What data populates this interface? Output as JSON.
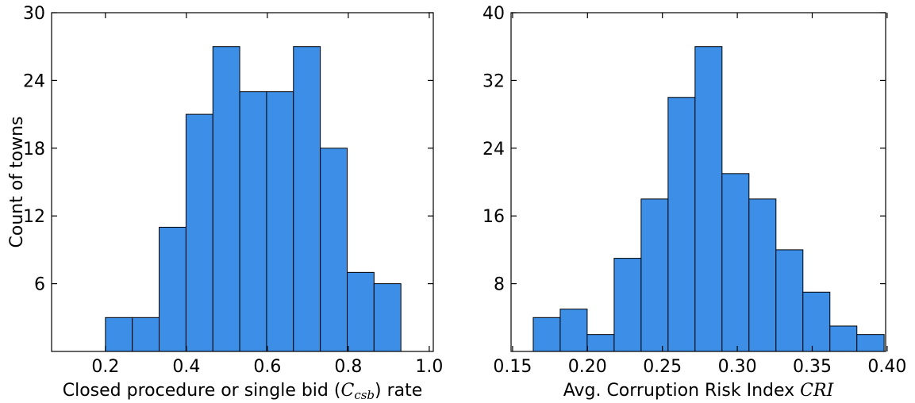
{
  "chart_data": [
    {
      "type": "histogram",
      "ylabel": "Count of towns",
      "xlabel": [
        "Closed procedure or single bid (",
        "C",
        "csb",
        ") rate"
      ],
      "bins": [
        0.2,
        0.2664,
        0.3327,
        0.3991,
        0.4655,
        0.5318,
        0.5982,
        0.6645,
        0.7309,
        0.7973,
        0.8636,
        0.93
      ],
      "values": [
        3,
        3,
        11,
        21,
        27,
        23,
        23,
        27,
        18,
        7,
        6
      ],
      "color": "#3d8ee6",
      "xlim": [
        0.067,
        1.01
      ],
      "xticks": [
        0.2,
        0.4,
        0.6,
        0.8,
        {
          "value": 1.0,
          "label": "1.0"
        }
      ],
      "ylim": [
        0,
        30
      ],
      "yticks": [
        6,
        12,
        18,
        24,
        30
      ]
    },
    {
      "type": "histogram",
      "xlabel": [
        "Avg. Corruption Risk Index ",
        "CRI"
      ],
      "bins": [
        0.1638,
        0.1818,
        0.1998,
        0.2178,
        0.2358,
        0.2538,
        0.2718,
        0.2898,
        0.3078,
        0.3258,
        0.3438,
        0.3618,
        0.3798,
        0.398
      ],
      "values": [
        4,
        5,
        2,
        11,
        18,
        30,
        36,
        21,
        18,
        12,
        7,
        3,
        2
      ],
      "color": "#3d8ee6",
      "xlim": [
        0.149,
        0.399
      ],
      "xticks": [
        0.15,
        {
          "value": 0.2,
          "label": "0.20"
        },
        0.25,
        {
          "value": 0.3,
          "label": "0.30"
        },
        0.35,
        {
          "value": 0.4,
          "label": "0.40"
        }
      ],
      "ylim": [
        0,
        40
      ],
      "yticks": [
        8,
        16,
        24,
        32,
        40
      ]
    }
  ]
}
